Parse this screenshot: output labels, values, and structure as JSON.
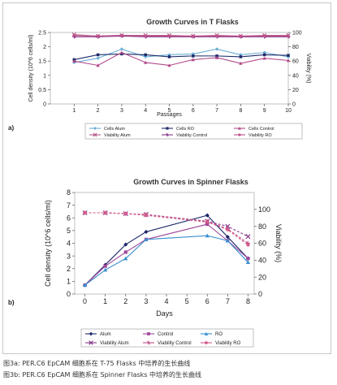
{
  "chart_data": [
    {
      "type": "line",
      "title": "Growth Curves in T Flasks",
      "xlabel": "Passages",
      "ylabel": "Cell density (10^6 cells/ml)",
      "y2label": "Viability (%)",
      "panel_label": "a)",
      "x": [
        1,
        2,
        3,
        4,
        5,
        6,
        7,
        8,
        9,
        10
      ],
      "xlim": [
        0,
        10
      ],
      "ylim": [
        0,
        2.5
      ],
      "y2lim": [
        0,
        100
      ],
      "yticks": [
        0,
        0.5,
        1,
        1.5,
        2,
        2.5
      ],
      "y2ticks": [
        0,
        20,
        40,
        60,
        80,
        100
      ],
      "legend_position": "bottom",
      "series": [
        {
          "name": "Cells Alum",
          "axis": "left",
          "color": "#6aaed6",
          "marker": "diamond",
          "values": [
            1.45,
            1.6,
            1.92,
            1.65,
            1.72,
            1.75,
            1.92,
            1.72,
            1.8,
            1.65
          ]
        },
        {
          "name": "Cells RO",
          "axis": "left",
          "color": "#1f2a6b",
          "marker": "square",
          "values": [
            1.55,
            1.72,
            1.75,
            1.72,
            1.65,
            1.68,
            1.68,
            1.65,
            1.72,
            1.7
          ]
        },
        {
          "name": "Cells Control",
          "axis": "left",
          "color": "#b24a8a",
          "marker": "triangle",
          "values": [
            1.5,
            1.35,
            1.8,
            1.45,
            1.35,
            1.55,
            1.62,
            1.42,
            1.6,
            1.52
          ]
        },
        {
          "name": "Viability Alum",
          "axis": "right",
          "color": "#b85c8a",
          "marker": "x",
          "values": [
            97,
            95,
            96,
            96,
            96,
            95,
            96,
            95,
            96,
            96
          ]
        },
        {
          "name": "Viability Control",
          "axis": "right",
          "color": "#8a3a8a",
          "marker": "star",
          "values": [
            94,
            94,
            95,
            94,
            94,
            94,
            94,
            94,
            94,
            94
          ]
        },
        {
          "name": "Viability RO",
          "axis": "right",
          "color": "#c0508a",
          "marker": "circle",
          "values": [
            96,
            95,
            96,
            95,
            95,
            95,
            95,
            95,
            95,
            95
          ]
        }
      ]
    },
    {
      "type": "line",
      "title": "Growth Curves in Spinner Flasks",
      "xlabel": "Days",
      "ylabel": "Cell density (10^6 cells/ml)",
      "y2label": "Viability (%)",
      "panel_label": "b)",
      "x": [
        0,
        1,
        2,
        3,
        6,
        7,
        8
      ],
      "xticks": [
        0,
        1,
        2,
        3,
        4,
        5,
        6,
        7,
        8
      ],
      "xlim": [
        -0.5,
        8.3
      ],
      "ylim": [
        0,
        8
      ],
      "y2lim": [
        0,
        120
      ],
      "yticks": [
        0,
        1,
        2,
        3,
        4,
        5,
        6,
        7,
        8
      ],
      "y2ticks": [
        0,
        20,
        40,
        60,
        80,
        100
      ],
      "legend_position": "bottom",
      "series": [
        {
          "name": "Alum",
          "axis": "left",
          "color": "#1f2a6b",
          "marker": "diamond",
          "values": [
            0.7,
            2.3,
            3.9,
            4.9,
            6.2,
            4.5,
            2.8
          ]
        },
        {
          "name": "Control",
          "axis": "left",
          "color": "#a0479a",
          "marker": "square",
          "values": [
            0.7,
            2.2,
            3.3,
            4.3,
            5.5,
            4.2,
            2.8
          ]
        },
        {
          "name": "RO",
          "axis": "left",
          "color": "#3a8fd0",
          "marker": "triangle",
          "values": [
            0.7,
            1.9,
            2.8,
            4.3,
            4.6,
            4.2,
            2.5
          ]
        },
        {
          "name": "Viability Alum",
          "axis": "right",
          "color": "#8a3a8a",
          "marker": "x",
          "values": [
            96,
            96,
            95,
            94,
            86,
            80,
            68
          ]
        },
        {
          "name": "Viability Control",
          "axis": "right",
          "color": "#c0508a",
          "marker": "star",
          "values": [
            96,
            96,
            95,
            94,
            86,
            77,
            60
          ]
        },
        {
          "name": "Viability RO",
          "axis": "right",
          "color": "#d45a8a",
          "marker": "circle",
          "values": [
            96,
            96,
            95,
            93,
            85,
            76,
            58
          ]
        }
      ]
    }
  ],
  "captions": [
    "图3a: PER.C6 EpCAM 细胞系在 T-75 Flasks 中培养的生长曲线",
    "图3b: PER.C6 EpCAM 细胞系在 Spinner Flasks 中培养的生长曲线"
  ]
}
